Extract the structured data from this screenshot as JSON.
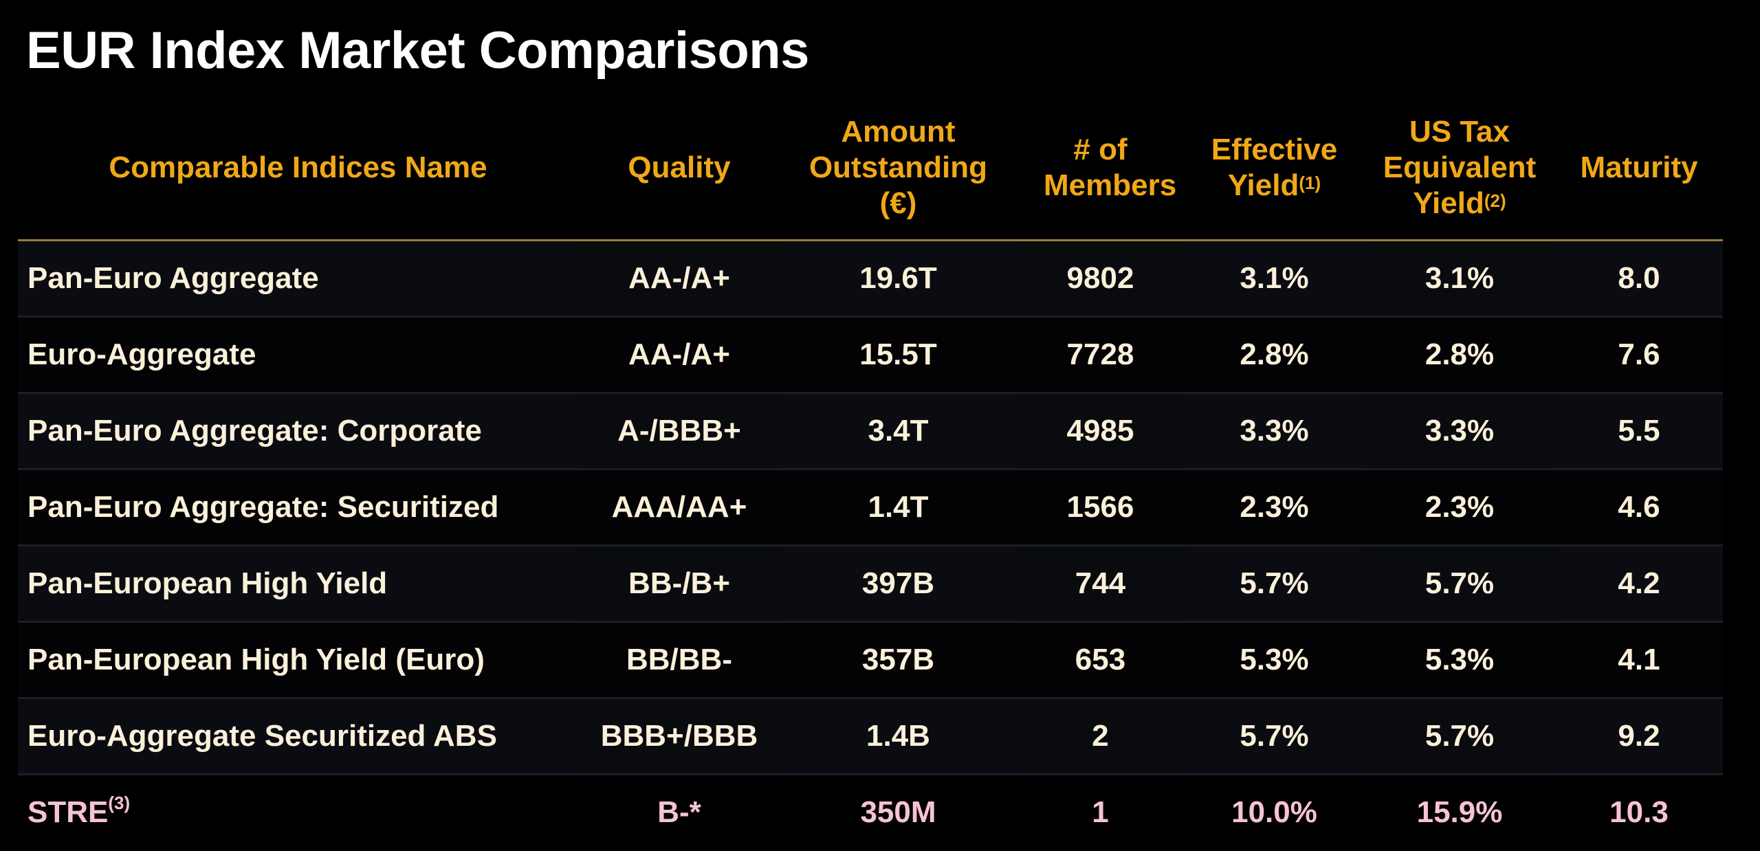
{
  "title": "EUR Index Market Comparisons",
  "colors": {
    "header": "#f0a818",
    "text": "#fbf0d9",
    "highlight": "#f6c3d4",
    "background": "#000000"
  },
  "columns": [
    {
      "label": "Comparable Indices Name",
      "sup": ""
    },
    {
      "label": "Quality",
      "sup": ""
    },
    {
      "label": "Amount Outstanding (€)",
      "sup": ""
    },
    {
      "label": "# of Members",
      "sup": ""
    },
    {
      "label": "Effective Yield",
      "sup": "(1)"
    },
    {
      "label": "US Tax Equivalent Yield",
      "sup": "(2)"
    },
    {
      "label": "Maturity",
      "sup": ""
    }
  ],
  "rows": [
    {
      "name": "Pan-Euro Aggregate",
      "sup": "",
      "quality": "AA-/A+",
      "amount": "19.6T",
      "members": "9802",
      "effective_yield": "3.1%",
      "us_tax_yield": "3.1%",
      "maturity": "8.0"
    },
    {
      "name": "Euro-Aggregate",
      "sup": "",
      "quality": "AA-/A+",
      "amount": "15.5T",
      "members": "7728",
      "effective_yield": "2.8%",
      "us_tax_yield": "2.8%",
      "maturity": "7.6"
    },
    {
      "name": "Pan-Euro Aggregate: Corporate",
      "sup": "",
      "quality": "A-/BBB+",
      "amount": "3.4T",
      "members": "4985",
      "effective_yield": "3.3%",
      "us_tax_yield": "3.3%",
      "maturity": "5.5"
    },
    {
      "name": "Pan-Euro Aggregate: Securitized",
      "sup": "",
      "quality": "AAA/AA+",
      "amount": "1.4T",
      "members": "1566",
      "effective_yield": "2.3%",
      "us_tax_yield": "2.3%",
      "maturity": "4.6"
    },
    {
      "name": "Pan-European High Yield",
      "sup": "",
      "quality": "BB-/B+",
      "amount": "397B",
      "members": "744",
      "effective_yield": "5.7%",
      "us_tax_yield": "5.7%",
      "maturity": "4.2"
    },
    {
      "name": "Pan-European High Yield (Euro)",
      "sup": "",
      "quality": "BB/BB-",
      "amount": "357B",
      "members": "653",
      "effective_yield": "5.3%",
      "us_tax_yield": "5.3%",
      "maturity": "4.1"
    },
    {
      "name": "Euro-Aggregate Securitized ABS",
      "sup": "",
      "quality": "BBB+/BBB",
      "amount": "1.4B",
      "members": "2",
      "effective_yield": "5.7%",
      "us_tax_yield": "5.7%",
      "maturity": "9.2"
    },
    {
      "name": "STRE",
      "sup": "(3)",
      "quality": "B-*",
      "amount": "350M",
      "members": "1",
      "effective_yield": "10.0%",
      "us_tax_yield": "15.9%",
      "maturity": "10.3",
      "highlight": true
    }
  ]
}
